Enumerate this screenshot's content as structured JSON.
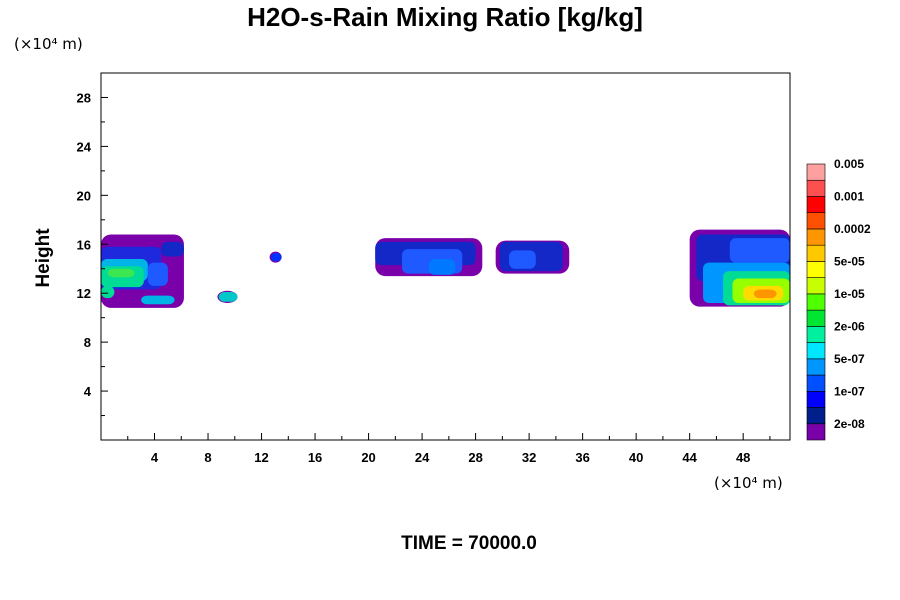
{
  "chart_data": {
    "type": "contour",
    "title": "H2O-s-Rain Mixing Ratio [kg/kg]",
    "ylabel": "Height",
    "x_unit": "(×10⁴ m)",
    "y_unit": "(×10⁴ m)",
    "xlim": [
      0,
      51.5
    ],
    "ylim": [
      0,
      30
    ],
    "x_ticks": [
      "4",
      "8",
      "12",
      "16",
      "20",
      "24",
      "28",
      "32",
      "36",
      "40",
      "44",
      "48"
    ],
    "y_ticks": [
      "4",
      "8",
      "12",
      "16",
      "20",
      "24",
      "28"
    ],
    "time_label": "TIME = 70000.0",
    "colorbar": {
      "colors": [
        "#7a00aa",
        "#001e8c",
        "#0000ff",
        "#0050ff",
        "#0096ff",
        "#00e6ff",
        "#00f0a0",
        "#00e632",
        "#50ff00",
        "#c8ff00",
        "#ffff00",
        "#ffc800",
        "#ff9600",
        "#ff5000",
        "#ff0000",
        "#ff5050",
        "#ffa0a0"
      ],
      "labels": [
        "2e-08",
        "1e-07",
        "5e-07",
        "2e-06",
        "1e-05",
        "5e-05",
        "0.0002",
        "0.001",
        "0.005"
      ]
    },
    "regions": [
      {
        "name": "cloud-left",
        "x": [
          0,
          6.2
        ],
        "y": [
          10.8,
          16.8
        ],
        "cells": [
          [
            0,
            12.3,
            4.5,
            15.8,
            "#1e28dc"
          ],
          [
            0,
            13.0,
            3.5,
            14.8,
            "#00b4e6"
          ],
          [
            0,
            12.5,
            3.2,
            14.2,
            "#00dc96"
          ],
          [
            0.5,
            13.3,
            2.5,
            14.0,
            "#3ce650"
          ],
          [
            3.5,
            12.6,
            5.0,
            14.5,
            "#1e5aff"
          ],
          [
            3.0,
            11.1,
            5.5,
            11.8,
            "#00b4e6"
          ],
          [
            0,
            11.6,
            1.0,
            12.6,
            "#00dc96"
          ],
          [
            4.5,
            15.0,
            6.2,
            16.2,
            "#1428c8"
          ]
        ]
      },
      {
        "name": "speck-9",
        "x": [
          8.7,
          10.2
        ],
        "y": [
          11.2,
          12.2
        ],
        "cells": [
          [
            8.8,
            11.3,
            10.2,
            12.1,
            "#00c8c8"
          ]
        ]
      },
      {
        "name": "speck-13",
        "x": [
          12.6,
          13.5
        ],
        "y": [
          14.5,
          15.4
        ],
        "cells": [
          [
            12.7,
            14.6,
            13.5,
            15.3,
            "#0032ff"
          ]
        ]
      },
      {
        "name": "cloud-mid",
        "x": [
          20.5,
          28.5
        ],
        "y": [
          13.4,
          16.5
        ],
        "cells": [
          [
            20.5,
            14.3,
            28.0,
            16.2,
            "#1428c8"
          ],
          [
            22.5,
            13.6,
            27.0,
            15.6,
            "#1e5aff"
          ],
          [
            24.5,
            13.5,
            26.5,
            14.8,
            "#0078ff"
          ]
        ]
      },
      {
        "name": "cloud-32",
        "x": [
          29.5,
          35.0
        ],
        "y": [
          13.6,
          16.3
        ],
        "cells": [
          [
            29.8,
            13.8,
            34.5,
            16.2,
            "#1428c8"
          ],
          [
            30.5,
            14.0,
            32.5,
            15.5,
            "#1e5aff"
          ]
        ]
      },
      {
        "name": "cloud-right",
        "x": [
          44,
          51.5
        ],
        "y": [
          10.9,
          17.2
        ],
        "cells": [
          [
            44.5,
            13.0,
            51.5,
            16.8,
            "#1428c8"
          ],
          [
            45.0,
            11.2,
            51.5,
            14.5,
            "#0096ff"
          ],
          [
            46.5,
            11.0,
            51.5,
            13.8,
            "#00dc96"
          ],
          [
            47.2,
            11.2,
            51.5,
            13.2,
            "#96ff00"
          ],
          [
            48.0,
            11.4,
            51.0,
            12.6,
            "#ffdc00"
          ],
          [
            48.8,
            11.6,
            50.5,
            12.3,
            "#ff9600"
          ],
          [
            47.0,
            14.5,
            51.5,
            16.5,
            "#1e5aff"
          ]
        ]
      }
    ]
  }
}
